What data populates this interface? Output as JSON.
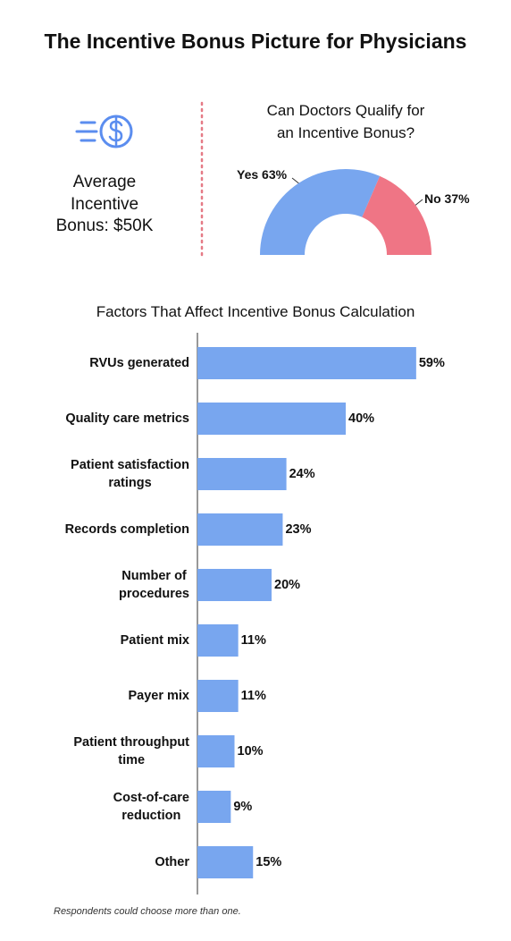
{
  "title": "The Incentive Bonus Picture for Physicians",
  "stat": "Average\nIncentive\nBonus: $50K",
  "footnote": "Respondents could choose more than one.",
  "chart_data": [
    {
      "type": "pie",
      "title": "Can Doctors Qualify for\nan Incentive Bonus?",
      "values": [
        63,
        37
      ],
      "value_labels": [
        "Yes 63%",
        "No 37%"
      ],
      "colors": [
        "#78a6ef",
        "#ef7585"
      ],
      "half": true
    },
    {
      "type": "hbar",
      "title": "Factors That Affect Incentive Bonus Calculation",
      "categories": [
        "RVUs generated",
        "Quality care metrics",
        "Patient satisfaction\nratings",
        "Records completion",
        "Number of\nprocedures",
        "Patient mix",
        "Payer mix",
        "Patient throughput\ntime",
        "Cost-of-care\nreduction",
        "Other"
      ],
      "values": [
        59,
        40,
        24,
        23,
        20,
        11,
        11,
        10,
        9,
        15
      ],
      "value_labels": [
        "59%",
        "40%",
        "24%",
        "23%",
        "20%",
        "11%",
        "11%",
        "10%",
        "9%",
        "15%"
      ],
      "color": "#78a6ef",
      "xlim": [
        0,
        60
      ]
    }
  ]
}
